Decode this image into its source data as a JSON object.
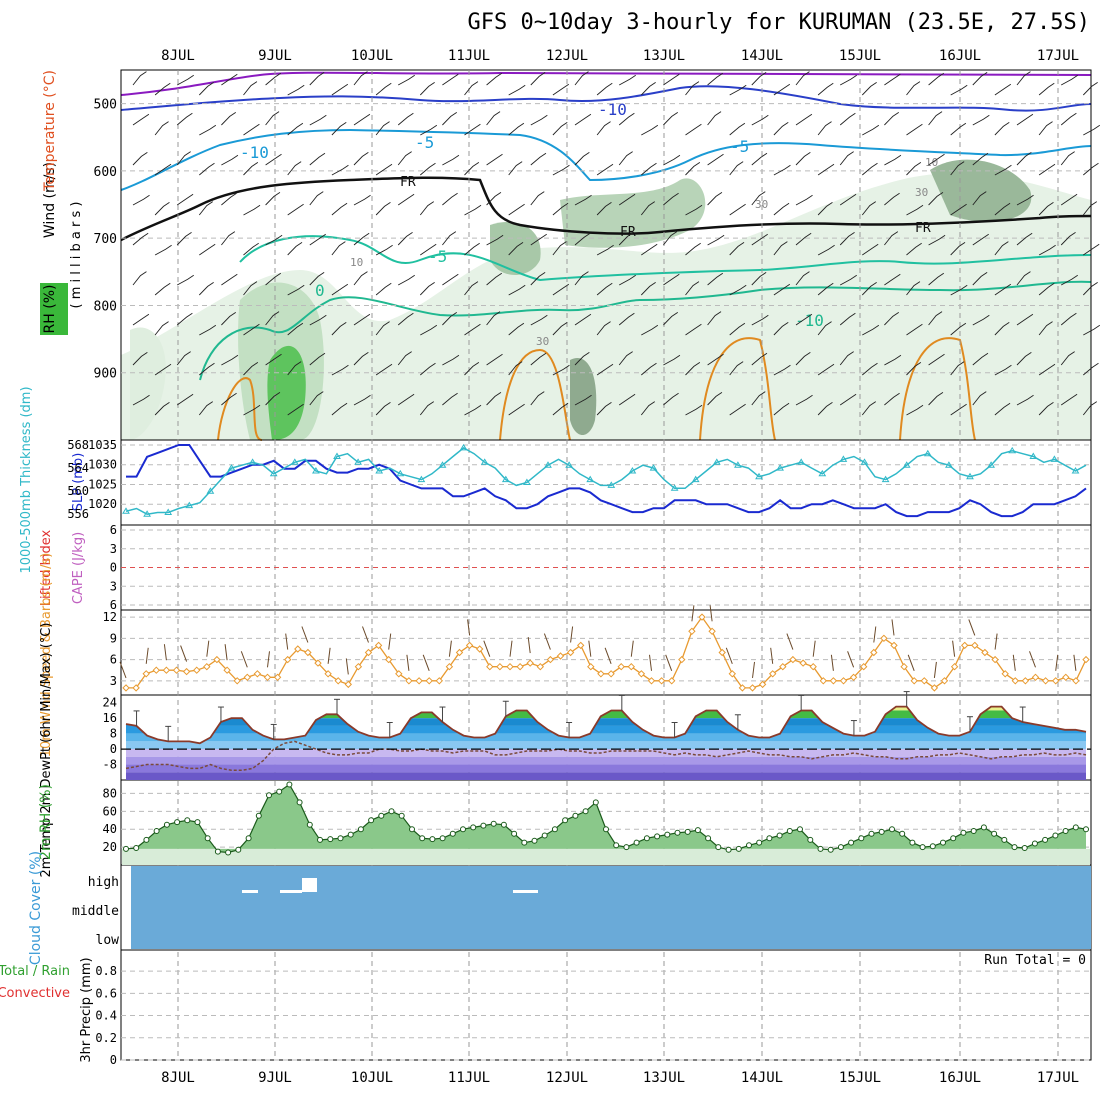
{
  "title": "GFS 0~10day 3-hourly for KURUMAN (23.5E, 27.5S)",
  "date_labels": [
    "8JUL",
    "9JUL",
    "10JUL",
    "11JUL",
    "12JUL",
    "13JUL",
    "14JUL",
    "15JUL",
    "16JUL",
    "17JUL"
  ],
  "colors": {
    "temp_warm": "#e08a20",
    "temp_cool": "#20c0a0",
    "temp_cold": "#1a9ad6",
    "temp_colder": "#2a3fc8",
    "temp_coldest": "#8a1ac0",
    "slp": "#1a2ad0",
    "thickness": "#30b8c8",
    "wind10": "#e89a30",
    "rh2m": "#30a030",
    "cloud": "#6aaad8"
  },
  "chart_data": [
    {
      "type": "contour",
      "ylabel_parts": [
        "Wind (m/s)",
        "Temperature (°C)",
        "RH (%)"
      ],
      "ylabel_side": "( m i l l i b a r s )",
      "yticks": [
        500,
        600,
        700,
        800,
        900
      ],
      "ylim": [
        1000,
        450
      ],
      "contour_labels": [
        "-10",
        "-5",
        "FR",
        "-5",
        "-10",
        "0",
        "10",
        "10",
        "30",
        "30",
        "30",
        "FR",
        "FR",
        "-5",
        "-10"
      ]
    },
    {
      "type": "line",
      "ylabel_left": "1000-500mb Thickness (dm)",
      "ylabel_right": "SLP (mb)",
      "left_ticks": [
        "568",
        "564",
        "560",
        "556"
      ],
      "right_ticks": [
        "1035",
        "1030",
        "1025",
        "1020"
      ],
      "series": [
        {
          "name": "SLP (mb)",
          "values": [
            1027,
            1027,
            1032,
            1033,
            1034,
            1035,
            1035,
            1031,
            1027,
            1027,
            1028,
            1029,
            1030,
            1030,
            1031,
            1029,
            1029,
            1031,
            1031,
            1029,
            1028,
            1028,
            1029,
            1029,
            1030,
            1029,
            1026,
            1025,
            1024,
            1024,
            1024,
            1022,
            1022,
            1023,
            1024,
            1022,
            1021,
            1019,
            1019,
            1020,
            1022,
            1023,
            1024,
            1024,
            1023,
            1021,
            1020,
            1019,
            1018,
            1018,
            1019,
            1019,
            1021,
            1021,
            1021,
            1020,
            1020,
            1020,
            1019,
            1018,
            1018,
            1019,
            1021,
            1019,
            1019,
            1020,
            1020,
            1021,
            1020,
            1019,
            1019,
            1019,
            1020,
            1018,
            1017,
            1017,
            1018,
            1018,
            1018,
            1019,
            1021,
            1020,
            1018,
            1017,
            1017,
            1018,
            1020,
            1020,
            1020,
            1021,
            1022,
            1024
          ]
        },
        {
          "name": "1000-500mb Thickness (dm)",
          "values": [
            556.5,
            557,
            556,
            556.3,
            556.3,
            557,
            557.5,
            558,
            560,
            562,
            564,
            564.5,
            565,
            564.5,
            563,
            564,
            565,
            565.5,
            563.5,
            563,
            566,
            566.5,
            565,
            565.5,
            563.5,
            564,
            563,
            562.5,
            562,
            563,
            564.5,
            566,
            567.5,
            566.5,
            565,
            564,
            562,
            561,
            561.5,
            563,
            564.5,
            565.5,
            564.5,
            563,
            562,
            561,
            561,
            562,
            563.5,
            564.5,
            564,
            562,
            560.5,
            560.5,
            562,
            563.5,
            565,
            565.5,
            564.5,
            564,
            562.5,
            563,
            564,
            564.5,
            565,
            564,
            563,
            564.5,
            565.5,
            566,
            565,
            562.5,
            562,
            563,
            564.5,
            566,
            566.5,
            565,
            564.5,
            563,
            562.5,
            563,
            564.5,
            566.5,
            567,
            566.5,
            566,
            565,
            565.5,
            564.5,
            563.5,
            564.5
          ]
        }
      ]
    },
    {
      "type": "line",
      "ylabel_left": "Lifted Index",
      "ylabel_right": "CAPE (J/kg)",
      "yticks": [
        "-6",
        "-3",
        "0",
        "3",
        "6"
      ],
      "ylim": [
        6,
        -6
      ],
      "series": []
    },
    {
      "type": "line",
      "ylabel": "10m Wind Speed & Barbs (m/s)",
      "yticks": [
        3,
        6,
        9,
        12
      ],
      "ylim": [
        1,
        13
      ],
      "series": [
        {
          "name": "10m Wind Speed",
          "values": [
            2,
            2,
            4,
            4.5,
            4.5,
            4.5,
            4.3,
            4.5,
            5,
            6,
            4.5,
            3,
            3.5,
            4,
            3.5,
            3.5,
            6,
            7.5,
            7,
            5.5,
            4,
            3,
            2.5,
            5,
            7,
            8,
            6,
            4,
            3,
            3,
            3,
            3,
            5,
            7,
            8,
            7.5,
            5,
            5,
            5,
            5,
            5.5,
            5,
            6,
            6.5,
            7,
            8,
            5,
            4,
            4,
            5,
            5,
            4,
            3,
            3,
            3,
            6,
            10,
            12,
            10,
            7,
            4,
            2,
            2,
            2.5,
            4,
            5,
            6,
            5.5,
            5,
            3,
            3,
            3,
            3.5,
            5,
            7,
            9,
            8,
            5,
            3,
            3,
            2,
            3,
            5,
            8,
            8,
            7,
            6,
            4,
            3,
            3,
            3.5,
            3,
            3,
            3.5,
            3,
            6
          ]
        }
      ]
    },
    {
      "type": "area",
      "ylabel": "2m Temp 2m DewPt (6hr Min/Max) (°C)",
      "yticks": [
        24,
        16,
        8,
        0,
        -8
      ],
      "ylim": [
        -16,
        28
      ],
      "series": [
        {
          "name": "2m Temp",
          "values": [
            13,
            12,
            7,
            5,
            4,
            4,
            4,
            3,
            6,
            14,
            16,
            16,
            10,
            7,
            5,
            5,
            6,
            7,
            15,
            18,
            18,
            13,
            9,
            7,
            6,
            6,
            8,
            16,
            19,
            19,
            14,
            10,
            7,
            6,
            6,
            8,
            17,
            20,
            20,
            14,
            10,
            7,
            6,
            6,
            8,
            17,
            20,
            20,
            14,
            10,
            7,
            6,
            6,
            8,
            17,
            20,
            20,
            14,
            10,
            7,
            6,
            6,
            8,
            17,
            20,
            20,
            14,
            11,
            8,
            7,
            7,
            9,
            18,
            22,
            22,
            15,
            11,
            8,
            7,
            7,
            9,
            18,
            22,
            22,
            16,
            14,
            13,
            12,
            11,
            10,
            10,
            9
          ]
        },
        {
          "name": "2m DewPt",
          "values": [
            -10,
            -9,
            -8,
            -8,
            -8,
            -9,
            -10,
            -10,
            -8,
            -10,
            -11,
            -11,
            -10,
            -6,
            0,
            3,
            4,
            2,
            0,
            -2,
            -3,
            -3,
            -2,
            -2,
            0,
            0,
            -1,
            -1,
            0,
            -1,
            -1,
            -2,
            -1,
            -1,
            -1,
            -3,
            -3,
            -2,
            -1,
            -1,
            -1,
            0,
            -1,
            -1,
            -2,
            -2,
            -1,
            -1,
            -1,
            -1,
            -1,
            -2,
            -3,
            -2,
            -3,
            -3,
            -4,
            -3,
            -2,
            -1,
            -2,
            -3,
            -3,
            -4,
            -4,
            -5,
            -4,
            -3,
            -3,
            -2,
            -3,
            -4,
            -4,
            -5,
            -5,
            -4,
            -4,
            -3,
            -3,
            -2,
            -3,
            -4,
            -5,
            -4,
            -4,
            -3,
            -3,
            -2,
            -3,
            -3,
            -2,
            -3
          ]
        }
      ]
    },
    {
      "type": "area",
      "ylabel": "2m RH (%)",
      "yticks": [
        20,
        40,
        60,
        80
      ],
      "ylim": [
        0,
        95
      ],
      "series": [
        {
          "name": "2m RH",
          "values": [
            18,
            19,
            28,
            38,
            45,
            48,
            50,
            48,
            30,
            15,
            14,
            17,
            30,
            55,
            78,
            82,
            90,
            70,
            45,
            28,
            29,
            30,
            34,
            40,
            50,
            55,
            60,
            55,
            40,
            30,
            29,
            30,
            35,
            40,
            42,
            44,
            46,
            45,
            35,
            25,
            27,
            33,
            40,
            50,
            55,
            60,
            70,
            40,
            22,
            20,
            25,
            30,
            32,
            34,
            36,
            37,
            39,
            30,
            20,
            17,
            18,
            22,
            25,
            30,
            33,
            38,
            40,
            28,
            18,
            17,
            20,
            25,
            30,
            35,
            37,
            40,
            35,
            25,
            20,
            21,
            25,
            30,
            36,
            38,
            42,
            35,
            28,
            20,
            19,
            24,
            28,
            33,
            38,
            42,
            40
          ]
        }
      ]
    },
    {
      "type": "bar",
      "ylabel": "Cloud Cover (%)",
      "levels": [
        "high",
        "middle",
        "low"
      ]
    },
    {
      "type": "bar",
      "ylabel_parts": [
        "3hr Precip (mm)",
        "Total / Rain",
        "Convective"
      ],
      "yticks": [
        "0",
        "0.2",
        "0.4",
        "0.6",
        "0.8"
      ],
      "ylim": [
        0,
        0.9
      ],
      "annotation": "Run Total = 0",
      "series": []
    }
  ]
}
